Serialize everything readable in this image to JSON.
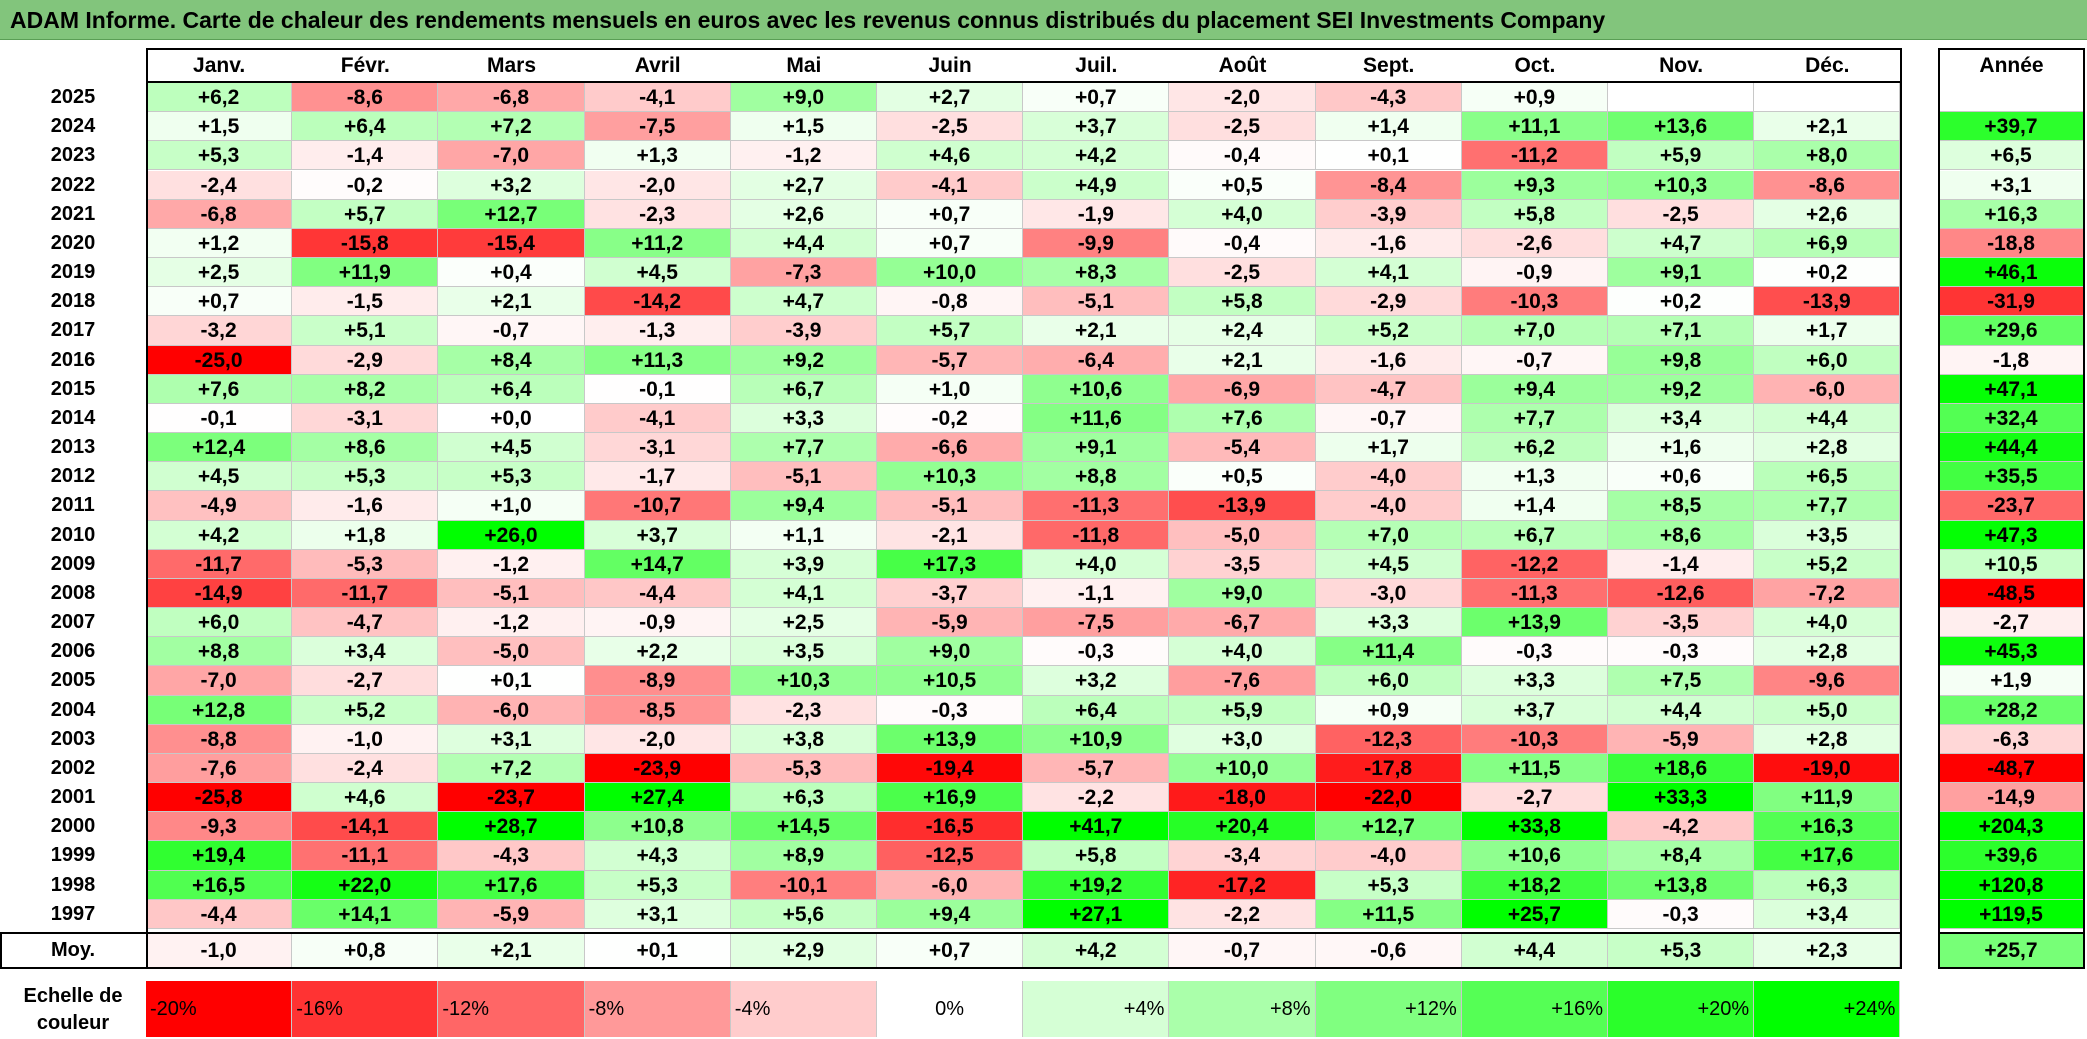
{
  "title": "ADAM Informe. Carte de chaleur des rendements mensuels en euros avec les revenus connus distribués du placement SEI Investments Company",
  "months": [
    "Janv.",
    "Févr.",
    "Mars",
    "Avril",
    "Mai",
    "Juin",
    "Juil.",
    "Août",
    "Sept.",
    "Oct.",
    "Nov.",
    "Déc."
  ],
  "annual_header": "Année",
  "average_label": "Moy.",
  "scale_label_line1": "Echelle de",
  "scale_label_line2": "couleur",
  "color_scale": [
    {
      "label": "-20%",
      "value": -20,
      "color": "#ff0000"
    },
    {
      "label": "-16%",
      "value": -16,
      "color": "#ff3333"
    },
    {
      "label": "-12%",
      "value": -12,
      "color": "#ff6666"
    },
    {
      "label": "-8%",
      "value": -8,
      "color": "#ff9999"
    },
    {
      "label": "-4%",
      "value": -4,
      "color": "#ffcccc"
    },
    {
      "label": "0%",
      "value": 0,
      "color": "#ffffff"
    },
    {
      "label": "+4%",
      "value": 4,
      "color": "#d5ffd5"
    },
    {
      "label": "+8%",
      "value": 8,
      "color": "#aaffaa"
    },
    {
      "label": "+12%",
      "value": 12,
      "color": "#80ff80"
    },
    {
      "label": "+16%",
      "value": 16,
      "color": "#55ff55"
    },
    {
      "label": "+20%",
      "value": 20,
      "color": "#2aff2a"
    },
    {
      "label": "+24%",
      "value": 24,
      "color": "#00ff00"
    }
  ],
  "chart_data": {
    "type": "heatmap",
    "title": "ADAM Informe. Carte de chaleur des rendements mensuels en euros avec les revenus connus distribués du placement SEI Investments Company",
    "columns": [
      "Janv.",
      "Févr.",
      "Mars",
      "Avril",
      "Mai",
      "Juin",
      "Juil.",
      "Août",
      "Sept.",
      "Oct.",
      "Nov.",
      "Déc."
    ],
    "rows": [
      {
        "year": "2025",
        "values": [
          "+6,2",
          "-8,6",
          "-6,8",
          "-4,1",
          "+9,0",
          "+2,7",
          "+0,7",
          "-2,0",
          "-4,3",
          "+0,9",
          "",
          ""
        ],
        "annual": ""
      },
      {
        "year": "2024",
        "values": [
          "+1,5",
          "+6,4",
          "+7,2",
          "-7,5",
          "+1,5",
          "-2,5",
          "+3,7",
          "-2,5",
          "+1,4",
          "+11,1",
          "+13,6",
          "+2,1"
        ],
        "annual": "+39,7"
      },
      {
        "year": "2023",
        "values": [
          "+5,3",
          "-1,4",
          "-7,0",
          "+1,3",
          "-1,2",
          "+4,6",
          "+4,2",
          "-0,4",
          "+0,1",
          "-11,2",
          "+5,9",
          "+8,0"
        ],
        "annual": "+6,5"
      },
      {
        "year": "2022",
        "values": [
          "-2,4",
          "-0,2",
          "+3,2",
          "-2,0",
          "+2,7",
          "-4,1",
          "+4,9",
          "+0,5",
          "-8,4",
          "+9,3",
          "+10,3",
          "-8,6"
        ],
        "annual": "+3,1"
      },
      {
        "year": "2021",
        "values": [
          "-6,8",
          "+5,7",
          "+12,7",
          "-2,3",
          "+2,6",
          "+0,7",
          "-1,9",
          "+4,0",
          "-3,9",
          "+5,8",
          "-2,5",
          "+2,6"
        ],
        "annual": "+16,3"
      },
      {
        "year": "2020",
        "values": [
          "+1,2",
          "-15,8",
          "-15,4",
          "+11,2",
          "+4,4",
          "+0,7",
          "-9,9",
          "-0,4",
          "-1,6",
          "-2,6",
          "+4,7",
          "+6,9"
        ],
        "annual": "-18,8"
      },
      {
        "year": "2019",
        "values": [
          "+2,5",
          "+11,9",
          "+0,4",
          "+4,5",
          "-7,3",
          "+10,0",
          "+8,3",
          "-2,5",
          "+4,1",
          "-0,9",
          "+9,1",
          "+0,2"
        ],
        "annual": "+46,1"
      },
      {
        "year": "2018",
        "values": [
          "+0,7",
          "-1,5",
          "+2,1",
          "-14,2",
          "+4,7",
          "-0,8",
          "-5,1",
          "+5,8",
          "-2,9",
          "-10,3",
          "+0,2",
          "-13,9"
        ],
        "annual": "-31,9"
      },
      {
        "year": "2017",
        "values": [
          "-3,2",
          "+5,1",
          "-0,7",
          "-1,3",
          "-3,9",
          "+5,7",
          "+2,1",
          "+2,4",
          "+5,2",
          "+7,0",
          "+7,1",
          "+1,7"
        ],
        "annual": "+29,6"
      },
      {
        "year": "2016",
        "values": [
          "-25,0",
          "-2,9",
          "+8,4",
          "+11,3",
          "+9,2",
          "-5,7",
          "-6,4",
          "+2,1",
          "-1,6",
          "-0,7",
          "+9,8",
          "+6,0"
        ],
        "annual": "-1,8"
      },
      {
        "year": "2015",
        "values": [
          "+7,6",
          "+8,2",
          "+6,4",
          "-0,1",
          "+6,7",
          "+1,0",
          "+10,6",
          "-6,9",
          "-4,7",
          "+9,4",
          "+9,2",
          "-6,0"
        ],
        "annual": "+47,1"
      },
      {
        "year": "2014",
        "values": [
          "-0,1",
          "-3,1",
          "+0,0",
          "-4,1",
          "+3,3",
          "-0,2",
          "+11,6",
          "+7,6",
          "-0,7",
          "+7,7",
          "+3,4",
          "+4,4"
        ],
        "annual": "+32,4"
      },
      {
        "year": "2013",
        "values": [
          "+12,4",
          "+8,6",
          "+4,5",
          "-3,1",
          "+7,7",
          "-6,6",
          "+9,1",
          "-5,4",
          "+1,7",
          "+6,2",
          "+1,6",
          "+2,8"
        ],
        "annual": "+44,4"
      },
      {
        "year": "2012",
        "values": [
          "+4,5",
          "+5,3",
          "+5,3",
          "-1,7",
          "-5,1",
          "+10,3",
          "+8,8",
          "+0,5",
          "-4,0",
          "+1,3",
          "+0,6",
          "+6,5"
        ],
        "annual": "+35,5"
      },
      {
        "year": "2011",
        "values": [
          "-4,9",
          "-1,6",
          "+1,0",
          "-10,7",
          "+9,4",
          "-5,1",
          "-11,3",
          "-13,9",
          "-4,0",
          "+1,4",
          "+8,5",
          "+7,7"
        ],
        "annual": "-23,7"
      },
      {
        "year": "2010",
        "values": [
          "+4,2",
          "+1,8",
          "+26,0",
          "+3,7",
          "+1,1",
          "-2,1",
          "-11,8",
          "-5,0",
          "+7,0",
          "+6,7",
          "+8,6",
          "+3,5"
        ],
        "annual": "+47,3"
      },
      {
        "year": "2009",
        "values": [
          "-11,7",
          "-5,3",
          "-1,2",
          "+14,7",
          "+3,9",
          "+17,3",
          "+4,0",
          "-3,5",
          "+4,5",
          "-12,2",
          "-1,4",
          "+5,2"
        ],
        "annual": "+10,5"
      },
      {
        "year": "2008",
        "values": [
          "-14,9",
          "-11,7",
          "-5,1",
          "-4,4",
          "+4,1",
          "-3,7",
          "-1,1",
          "+9,0",
          "-3,0",
          "-11,3",
          "-12,6",
          "-7,2"
        ],
        "annual": "-48,5"
      },
      {
        "year": "2007",
        "values": [
          "+6,0",
          "-4,7",
          "-1,2",
          "-0,9",
          "+2,5",
          "-5,9",
          "-7,5",
          "-6,7",
          "+3,3",
          "+13,9",
          "-3,5",
          "+4,0"
        ],
        "annual": "-2,7"
      },
      {
        "year": "2006",
        "values": [
          "+8,8",
          "+3,4",
          "-5,0",
          "+2,2",
          "+3,5",
          "+9,0",
          "-0,3",
          "+4,0",
          "+11,4",
          "-0,3",
          "-0,3",
          "+2,8"
        ],
        "annual": "+45,3"
      },
      {
        "year": "2005",
        "values": [
          "-7,0",
          "-2,7",
          "+0,1",
          "-8,9",
          "+10,3",
          "+10,5",
          "+3,2",
          "-7,6",
          "+6,0",
          "+3,3",
          "+7,5",
          "-9,6"
        ],
        "annual": "+1,9"
      },
      {
        "year": "2004",
        "values": [
          "+12,8",
          "+5,2",
          "-6,0",
          "-8,5",
          "-2,3",
          "-0,3",
          "+6,4",
          "+5,9",
          "+0,9",
          "+3,7",
          "+4,4",
          "+5,0"
        ],
        "annual": "+28,2"
      },
      {
        "year": "2003",
        "values": [
          "-8,8",
          "-1,0",
          "+3,1",
          "-2,0",
          "+3,8",
          "+13,9",
          "+10,9",
          "+3,0",
          "-12,3",
          "-10,3",
          "-5,9",
          "+2,8"
        ],
        "annual": "-6,3"
      },
      {
        "year": "2002",
        "values": [
          "-7,6",
          "-2,4",
          "+7,2",
          "-23,9",
          "-5,3",
          "-19,4",
          "-5,7",
          "+10,0",
          "-17,8",
          "+11,5",
          "+18,6",
          "-19,0"
        ],
        "annual": "-48,7"
      },
      {
        "year": "2001",
        "values": [
          "-25,8",
          "+4,6",
          "-23,7",
          "+27,4",
          "+6,3",
          "+16,9",
          "-2,2",
          "-18,0",
          "-22,0",
          "-2,7",
          "+33,3",
          "+11,9"
        ],
        "annual": "-14,9"
      },
      {
        "year": "2000",
        "values": [
          "-9,3",
          "-14,1",
          "+28,7",
          "+10,8",
          "+14,5",
          "-16,5",
          "+41,7",
          "+20,4",
          "+12,7",
          "+33,8",
          "-4,2",
          "+16,3"
        ],
        "annual": "+204,3"
      },
      {
        "year": "1999",
        "values": [
          "+19,4",
          "-11,1",
          "-4,3",
          "+4,3",
          "+8,9",
          "-12,5",
          "+5,8",
          "-3,4",
          "-4,0",
          "+10,6",
          "+8,4",
          "+17,6"
        ],
        "annual": "+39,6"
      },
      {
        "year": "1998",
        "values": [
          "+16,5",
          "+22,0",
          "+17,6",
          "+5,3",
          "-10,1",
          "-6,0",
          "+19,2",
          "-17,2",
          "+5,3",
          "+18,2",
          "+13,8",
          "+6,3"
        ],
        "annual": "+120,8"
      },
      {
        "year": "1997",
        "values": [
          "-4,4",
          "+14,1",
          "-5,9",
          "+3,1",
          "+5,6",
          "+9,4",
          "+27,1",
          "-2,2",
          "+11,5",
          "+25,7",
          "-0,3",
          "+3,4"
        ],
        "annual": "+119,5"
      }
    ],
    "averages": [
      "-1,0",
      "+0,8",
      "+2,1",
      "+0,1",
      "+2,9",
      "+0,7",
      "+4,2",
      "-0,7",
      "-0,6",
      "+4,4",
      "+5,3",
      "+2,3"
    ],
    "average_annual": "+25,7",
    "color_range": [
      -20,
      24
    ]
  }
}
